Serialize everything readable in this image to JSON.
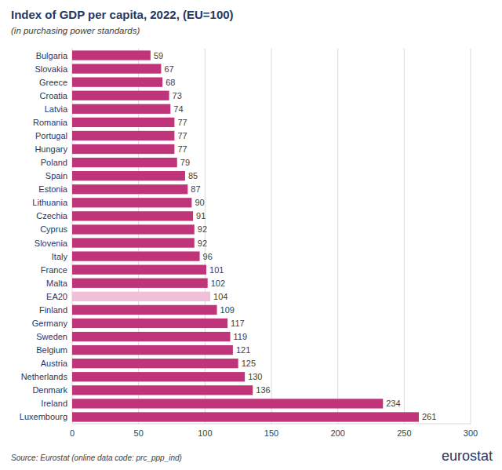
{
  "chart_data": {
    "type": "bar",
    "orientation": "horizontal",
    "title": "Index of GDP per capita, 2022, (EU=100)",
    "subtitle": "(in purchasing power standards)",
    "annotations": [
      "Source: Eurostat (online data code: prc_ppp_ind)",
      "eurostat"
    ],
    "categories": [
      "Bulgaria",
      "Slovakia",
      "Greece",
      "Croatia",
      "Latvia",
      "Romania",
      "Portugal",
      "Hungary",
      "Poland",
      "Spain",
      "Estonia",
      "Lithuania",
      "Czechia",
      "Cyprus",
      "Slovenia",
      "Italy",
      "France",
      "Malta",
      "EA20",
      "Finland",
      "Germany",
      "Sweden",
      "Belgium",
      "Austria",
      "Netherlands",
      "Denmark",
      "Ireland",
      "Luxembourg"
    ],
    "values": [
      59,
      67,
      68,
      73,
      74,
      77,
      77,
      77,
      79,
      85,
      87,
      90,
      91,
      92,
      92,
      96,
      101,
      102,
      104,
      109,
      117,
      119,
      121,
      125,
      130,
      136,
      234,
      261
    ],
    "colors": [
      "#c0357a",
      "#c0357a",
      "#c0357a",
      "#c0357a",
      "#c0357a",
      "#c0357a",
      "#c0357a",
      "#c0357a",
      "#c0357a",
      "#c0357a",
      "#c0357a",
      "#c0357a",
      "#c0357a",
      "#c0357a",
      "#c0357a",
      "#c0357a",
      "#c0357a",
      "#c0357a",
      "#f0c0d8",
      "#c0357a",
      "#c0357a",
      "#c0357a",
      "#c0357a",
      "#c0357a",
      "#c0357a",
      "#c0357a",
      "#c0357a",
      "#c0357a"
    ],
    "xlim": [
      0,
      300
    ],
    "xticks": [
      0,
      50,
      100,
      150,
      200,
      250,
      300
    ],
    "grid": true,
    "data_labels": true
  }
}
